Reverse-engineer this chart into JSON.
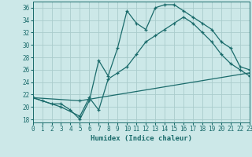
{
  "xlabel": "Humidex (Indice chaleur)",
  "xlim": [
    0,
    23
  ],
  "ylim": [
    17.5,
    37
  ],
  "xticks": [
    0,
    1,
    2,
    3,
    4,
    5,
    6,
    7,
    8,
    9,
    10,
    11,
    12,
    13,
    14,
    15,
    16,
    17,
    18,
    19,
    20,
    21,
    22,
    23
  ],
  "yticks": [
    18,
    20,
    22,
    24,
    26,
    28,
    30,
    32,
    34,
    36
  ],
  "background_color": "#cce8e8",
  "grid_color": "#aacccc",
  "line_color": "#1a6b6b",
  "curve1_x": [
    0,
    1,
    2,
    3,
    4,
    5,
    6,
    7,
    8,
    9,
    10,
    11,
    12,
    13,
    14,
    15,
    16,
    17,
    18,
    19,
    20,
    21,
    22,
    23
  ],
  "curve1_y": [
    21.5,
    21.0,
    20.5,
    20.5,
    19.5,
    18.0,
    21.0,
    27.5,
    25.0,
    29.5,
    35.5,
    33.5,
    32.5,
    36.0,
    36.5,
    36.5,
    35.5,
    34.5,
    33.5,
    32.5,
    30.5,
    29.5,
    26.5,
    26.0
  ],
  "curve2_x": [
    0,
    3,
    5,
    6,
    7,
    8,
    9,
    10,
    11,
    12,
    13,
    14,
    15,
    16,
    17,
    18,
    19,
    20,
    21,
    22,
    23
  ],
  "curve2_y": [
    21.5,
    20.0,
    18.5,
    21.5,
    19.5,
    24.5,
    25.5,
    26.5,
    28.5,
    30.5,
    31.5,
    32.5,
    33.5,
    34.5,
    33.5,
    32.0,
    30.5,
    28.5,
    27.0,
    26.0,
    25.0
  ],
  "curve3_x": [
    0,
    5,
    23
  ],
  "curve3_y": [
    21.5,
    21.0,
    25.5
  ],
  "tick_fontsize": 5.5,
  "xlabel_fontsize": 6.5
}
